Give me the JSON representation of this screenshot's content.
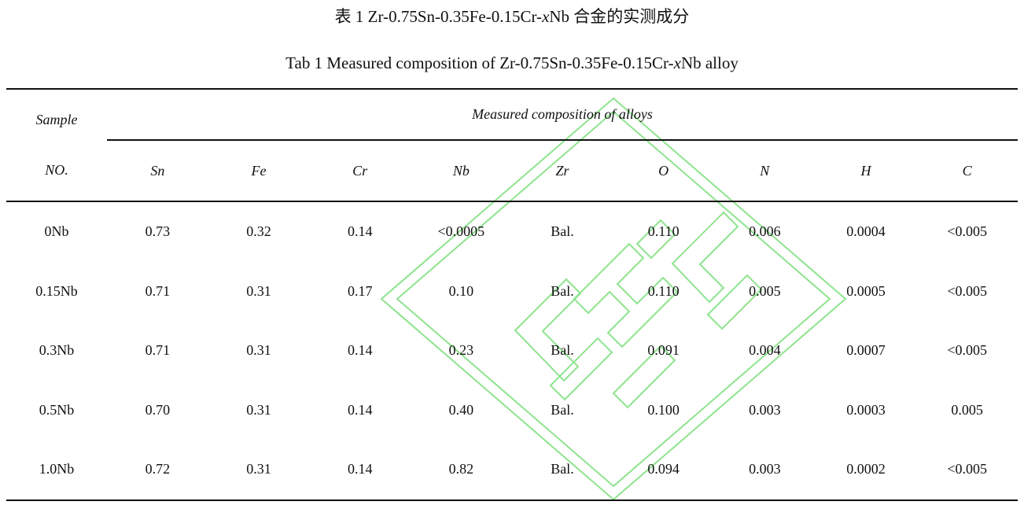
{
  "caption": {
    "cn_prefix": "表 1 Zr-0.75Sn-0.35Fe-0.15Cr-",
    "cn_italic": "x",
    "cn_suffix": "Nb 合金的实测成分",
    "en_prefix": "Tab 1 Measured composition of Zr-0.75Sn-0.35Fe-0.15Cr-",
    "en_italic": "x",
    "en_suffix": "Nb alloy"
  },
  "table": {
    "sample_header_line1": "Sample",
    "sample_header_line2": "NO.",
    "group_header": "Measured composition of alloys",
    "columns": [
      "Sn",
      "Fe",
      "Cr",
      "Nb",
      "Zr",
      "O",
      "N",
      "H",
      "C"
    ],
    "rows": [
      {
        "sample": "0Nb",
        "values": [
          "0.73",
          "0.32",
          "0.14",
          "<0.0005",
          "Bal.",
          "0.110",
          "0.006",
          "0.0004",
          "<0.005"
        ]
      },
      {
        "sample": "0.15Nb",
        "values": [
          "0.71",
          "0.31",
          "0.17",
          "0.10",
          "Bal.",
          "0.110",
          "0.005",
          "0.0005",
          "<0.005"
        ]
      },
      {
        "sample": "0.3Nb",
        "values": [
          "0.71",
          "0.31",
          "0.14",
          "0.23",
          "Bal.",
          "0.091",
          "0.004",
          "0.0007",
          "<0.005"
        ]
      },
      {
        "sample": "0.5Nb",
        "values": [
          "0.70",
          "0.31",
          "0.14",
          "0.40",
          "Bal.",
          "0.100",
          "0.003",
          "0.0003",
          "0.005"
        ]
      },
      {
        "sample": "1.0Nb",
        "values": [
          "0.72",
          "0.31",
          "0.14",
          "0.82",
          "Bal.",
          "0.094",
          "0.003",
          "0.0002",
          "<0.005"
        ]
      }
    ]
  },
  "watermark": {
    "color": "#7be07b"
  }
}
